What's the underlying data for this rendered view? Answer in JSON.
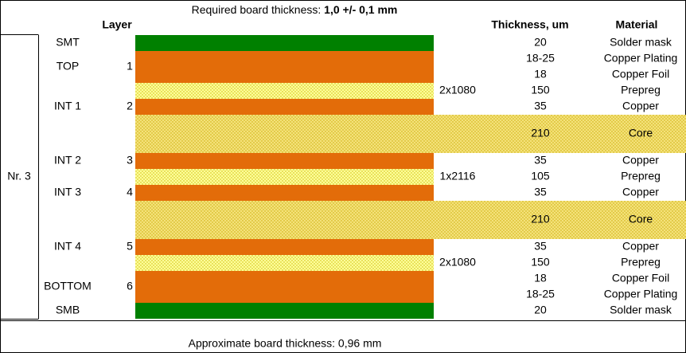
{
  "title": {
    "label": "Required board thickness:",
    "value": "1,0 +/- 0,1 mm"
  },
  "columns": {
    "layer": "Layer",
    "thickness": "Thickness, um",
    "material": "Material"
  },
  "group": "Nr. 3",
  "layers": [
    {
      "name": "SMT",
      "rows": [
        {
          "thickness": 20,
          "material": "Solder mask"
        }
      ]
    },
    {
      "name": "TOP",
      "number": 1,
      "rows": [
        {
          "thickness": "18-25",
          "material": "Copper Plating"
        },
        {
          "thickness": 18,
          "material": "Copper Foil"
        }
      ]
    },
    {
      "glass": "2x1080",
      "rows": [
        {
          "thickness": 150,
          "material": "Prepreg"
        }
      ]
    },
    {
      "name": "INT 1",
      "number": 2,
      "rows": [
        {
          "thickness": 35,
          "material": "Copper"
        }
      ]
    },
    {
      "rows": [
        {
          "thickness": 210,
          "material": "Core"
        }
      ]
    },
    {
      "name": "INT 2",
      "number": 3,
      "rows": [
        {
          "thickness": 35,
          "material": "Copper"
        }
      ]
    },
    {
      "glass": "1x2116",
      "rows": [
        {
          "thickness": 105,
          "material": "Prepreg"
        }
      ]
    },
    {
      "name": "INT 3",
      "number": 4,
      "rows": [
        {
          "thickness": 35,
          "material": "Copper"
        }
      ]
    },
    {
      "rows": [
        {
          "thickness": 210,
          "material": "Core"
        }
      ]
    },
    {
      "name": "INT 4",
      "number": 5,
      "rows": [
        {
          "thickness": 35,
          "material": "Copper"
        }
      ]
    },
    {
      "glass": "2x1080",
      "rows": [
        {
          "thickness": 150,
          "material": "Prepreg"
        }
      ]
    },
    {
      "name": "BOTTOM",
      "number": 6,
      "rows": [
        {
          "thickness": 18,
          "material": "Copper Foil"
        },
        {
          "thickness": "18-25",
          "material": "Copper Plating"
        }
      ]
    },
    {
      "name": "SMB",
      "rows": [
        {
          "thickness": 20,
          "material": "Solder mask"
        }
      ]
    }
  ],
  "footer": "Approximate board thickness: 0,96 mm"
}
